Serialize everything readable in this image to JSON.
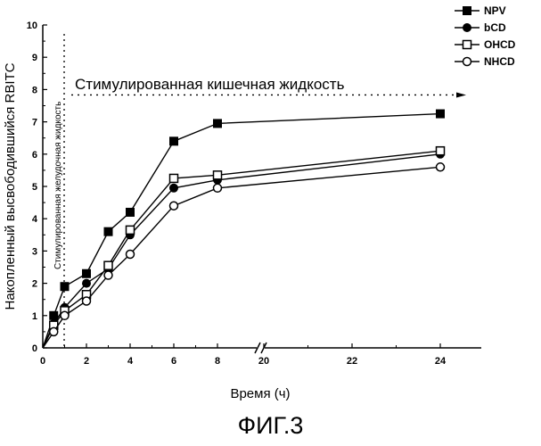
{
  "chart_data": {
    "type": "line",
    "title": "",
    "xlabel": "Время (ч)",
    "ylabel": "Накопленный высвободившийся RBITC",
    "x_ticks": [
      0,
      2,
      4,
      6,
      8,
      20,
      22,
      24
    ],
    "y_ticks": [
      0,
      1,
      2,
      3,
      4,
      5,
      6,
      7,
      8,
      9,
      10
    ],
    "ylim": [
      0,
      10
    ],
    "x_axis_break": "between 8 and 20",
    "legend_position": "top-right",
    "series": [
      {
        "name": "NPV",
        "marker": "filled-square",
        "x": [
          0,
          0.5,
          1,
          2,
          3,
          4,
          6,
          8,
          24
        ],
        "y": [
          0,
          1.0,
          1.9,
          2.3,
          3.6,
          4.2,
          6.4,
          6.95,
          7.25
        ]
      },
      {
        "name": "bCD",
        "marker": "filled-circle",
        "x": [
          0,
          0.5,
          1,
          2,
          3,
          4,
          6,
          8,
          24
        ],
        "y": [
          0,
          0.75,
          1.25,
          2.0,
          2.45,
          3.5,
          4.95,
          5.2,
          6.0
        ]
      },
      {
        "name": "OHCD",
        "marker": "open-square",
        "x": [
          0,
          0.5,
          1,
          2,
          3,
          4,
          6,
          8,
          24
        ],
        "y": [
          0,
          0.7,
          1.15,
          1.65,
          2.55,
          3.65,
          5.25,
          5.35,
          6.1
        ]
      },
      {
        "name": "NHCD",
        "marker": "open-circle",
        "x": [
          0,
          0.5,
          1,
          2,
          3,
          4,
          6,
          8,
          24
        ],
        "y": [
          0,
          0.5,
          1.0,
          1.45,
          2.25,
          2.9,
          4.4,
          4.95,
          5.6
        ]
      }
    ],
    "annotations": {
      "gastric": {
        "text": "Стимулированная желудочная жидкость",
        "x": 1
      },
      "intestinal": {
        "text": "Стимулированная кишечная жидкость",
        "y": 7.75
      }
    }
  },
  "caption": "ФИГ.3"
}
